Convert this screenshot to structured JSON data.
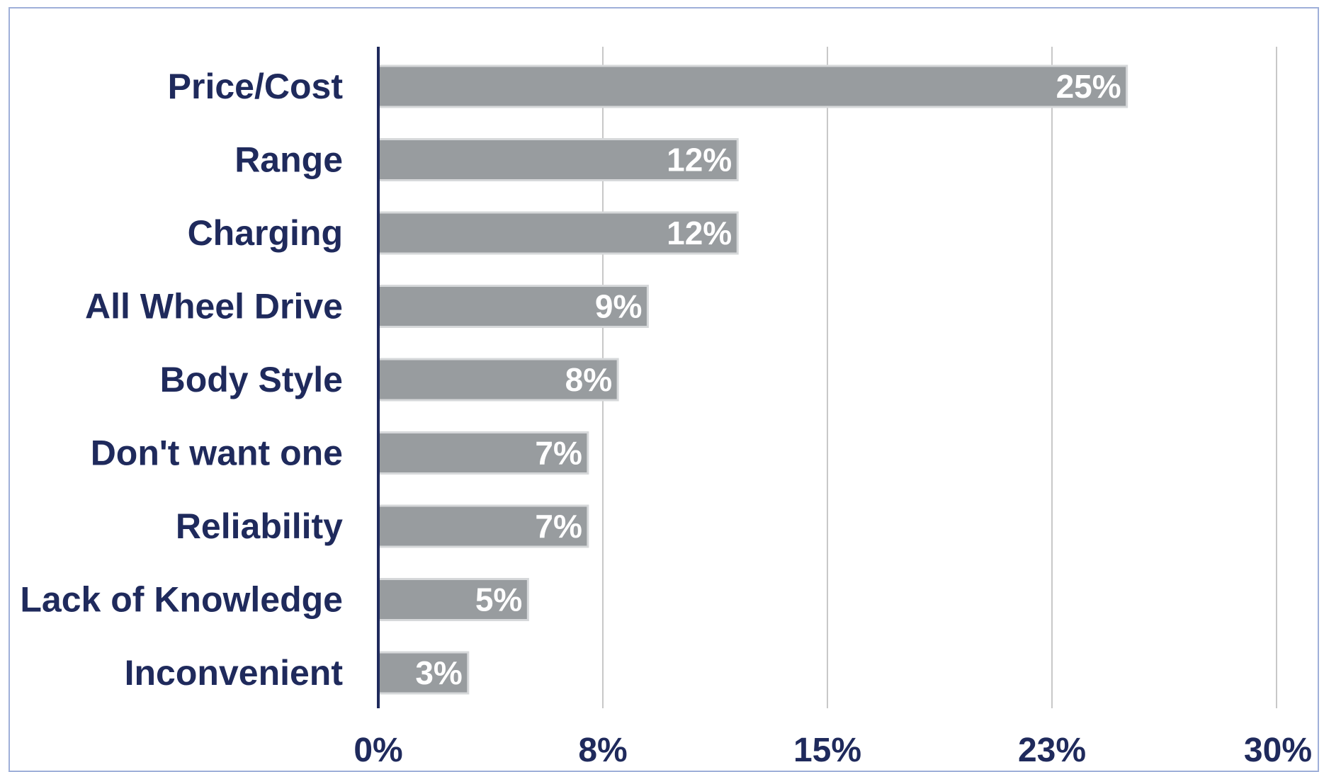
{
  "chart_data": {
    "type": "bar",
    "orientation": "horizontal",
    "categories": [
      "Price/Cost",
      "Range",
      "Charging",
      "All Wheel Drive",
      "Body Style",
      "Don't want one",
      "Reliability",
      "Lack of Knowledge",
      "Inconvenient"
    ],
    "values": [
      25,
      12,
      12,
      9,
      8,
      7,
      7,
      5,
      3
    ],
    "data_labels": [
      "25%",
      "12%",
      "12%",
      "9%",
      "8%",
      "7%",
      "7%",
      "5%",
      "3%"
    ],
    "value_unit": "%",
    "xlim": [
      0,
      30
    ],
    "x_ticks": [
      0,
      7.5,
      15,
      22.5,
      30
    ],
    "x_tick_labels": [
      "0%",
      "8%",
      "15%",
      "23%",
      "30%"
    ],
    "title": "",
    "xlabel": "",
    "ylabel": "",
    "grid": "vertical",
    "legend": "none",
    "colors": {
      "bar": "#989c9f",
      "bar_outline": "#d6d8da",
      "text": "#1f2a5c",
      "axis": "#1f2a5c",
      "grid": "#c8c8c8",
      "frame": "#9fb0d9",
      "data_label": "#ffffff"
    }
  }
}
